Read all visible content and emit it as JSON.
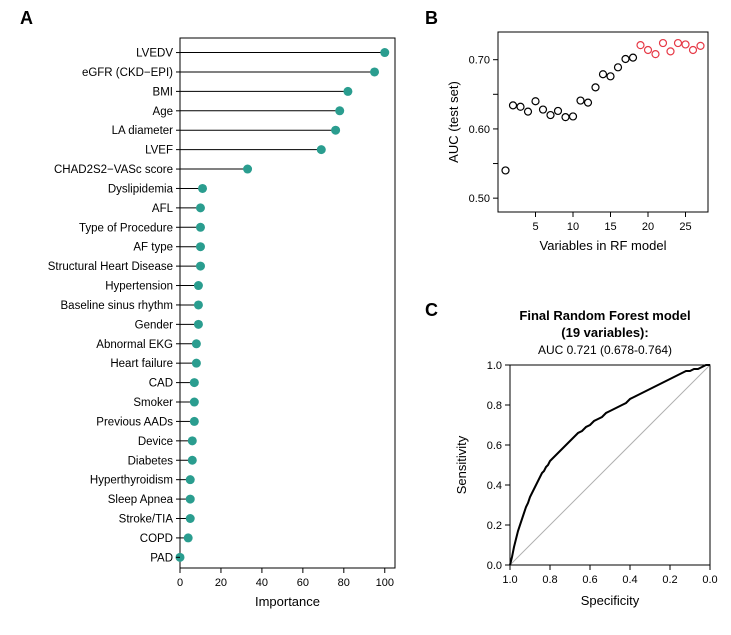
{
  "panelA": {
    "label": "A",
    "type": "lollipop",
    "xlabel": "Importance",
    "xlabel_fontsize": 13,
    "label_fontsize": 11.5,
    "xlim": [
      0,
      105
    ],
    "xticks": [
      0,
      20,
      40,
      60,
      80,
      100
    ],
    "tick_fontsize": 11,
    "dot_color": "#2a9d8f",
    "dot_radius": 4.5,
    "line_color": "#000000",
    "border_color": "#000000",
    "background_color": "#ffffff",
    "items": [
      {
        "label": "LVEDV",
        "value": 100
      },
      {
        "label": "eGFR (CKD−EPI)",
        "value": 95
      },
      {
        "label": "BMI",
        "value": 82
      },
      {
        "label": "Age",
        "value": 78
      },
      {
        "label": "LA diameter",
        "value": 76
      },
      {
        "label": "LVEF",
        "value": 69
      },
      {
        "label": "CHAD2S2−VASc score",
        "value": 33
      },
      {
        "label": "Dyslipidemia",
        "value": 11
      },
      {
        "label": "AFL",
        "value": 10
      },
      {
        "label": "Type of Procedure",
        "value": 10
      },
      {
        "label": "AF type",
        "value": 10
      },
      {
        "label": "Structural Heart Disease",
        "value": 10
      },
      {
        "label": "Hypertension",
        "value": 9
      },
      {
        "label": "Baseline sinus rhythm",
        "value": 9
      },
      {
        "label": "Gender",
        "value": 9
      },
      {
        "label": "Abnormal EKG",
        "value": 8
      },
      {
        "label": "Heart failure",
        "value": 8
      },
      {
        "label": "CAD",
        "value": 7
      },
      {
        "label": "Smoker",
        "value": 7
      },
      {
        "label": "Previous AADs",
        "value": 7
      },
      {
        "label": "Device",
        "value": 6
      },
      {
        "label": "Diabetes",
        "value": 6
      },
      {
        "label": "Hyperthyroidism",
        "value": 5
      },
      {
        "label": "Sleep Apnea",
        "value": 5
      },
      {
        "label": "Stroke/TIA",
        "value": 5
      },
      {
        "label": "COPD",
        "value": 4
      },
      {
        "label": "PAD",
        "value": 0
      }
    ]
  },
  "panelB": {
    "label": "B",
    "type": "scatter",
    "xlabel": "Variables in RF model",
    "ylabel": "AUC (test set)",
    "xlabel_fontsize": 13,
    "ylabel_fontsize": 13,
    "xlim": [
      0,
      28
    ],
    "ylim": [
      0.48,
      0.74
    ],
    "xticks": [
      5,
      10,
      15,
      20,
      25
    ],
    "yticks": [
      0.5,
      0.55,
      0.6,
      0.65,
      0.7
    ],
    "yticklabels": [
      "0.50",
      "",
      "0.60",
      "",
      "0.70"
    ],
    "tick_fontsize": 11,
    "border_color": "#000000",
    "marker_radius": 3.5,
    "marker_stroke_black": "#000000",
    "marker_stroke_red": "#e63946",
    "points": [
      {
        "x": 1,
        "y": 0.54,
        "c": "black"
      },
      {
        "x": 2,
        "y": 0.634,
        "c": "black"
      },
      {
        "x": 3,
        "y": 0.632,
        "c": "black"
      },
      {
        "x": 4,
        "y": 0.625,
        "c": "black"
      },
      {
        "x": 5,
        "y": 0.64,
        "c": "black"
      },
      {
        "x": 6,
        "y": 0.628,
        "c": "black"
      },
      {
        "x": 7,
        "y": 0.62,
        "c": "black"
      },
      {
        "x": 8,
        "y": 0.626,
        "c": "black"
      },
      {
        "x": 9,
        "y": 0.617,
        "c": "black"
      },
      {
        "x": 10,
        "y": 0.618,
        "c": "black"
      },
      {
        "x": 11,
        "y": 0.641,
        "c": "black"
      },
      {
        "x": 12,
        "y": 0.638,
        "c": "black"
      },
      {
        "x": 13,
        "y": 0.66,
        "c": "black"
      },
      {
        "x": 14,
        "y": 0.679,
        "c": "black"
      },
      {
        "x": 15,
        "y": 0.676,
        "c": "black"
      },
      {
        "x": 16,
        "y": 0.689,
        "c": "black"
      },
      {
        "x": 17,
        "y": 0.701,
        "c": "black"
      },
      {
        "x": 18,
        "y": 0.703,
        "c": "black"
      },
      {
        "x": 19,
        "y": 0.721,
        "c": "red"
      },
      {
        "x": 20,
        "y": 0.714,
        "c": "red"
      },
      {
        "x": 21,
        "y": 0.708,
        "c": "red"
      },
      {
        "x": 22,
        "y": 0.724,
        "c": "red"
      },
      {
        "x": 23,
        "y": 0.712,
        "c": "red"
      },
      {
        "x": 24,
        "y": 0.724,
        "c": "red"
      },
      {
        "x": 25,
        "y": 0.722,
        "c": "red"
      },
      {
        "x": 26,
        "y": 0.714,
        "c": "red"
      },
      {
        "x": 27,
        "y": 0.72,
        "c": "red"
      }
    ]
  },
  "panelC": {
    "label": "C",
    "type": "roc",
    "title_line1": "Final Random Forest model",
    "title_line2": "(19 variables):",
    "subtitle": "AUC 0.721 (0.678-0.764)",
    "title_fontsize": 13,
    "subtitle_fontsize": 12,
    "xlabel": "Specificity",
    "ylabel": "Sensitivity",
    "label_fontsize": 13,
    "xlim": [
      1.0,
      0.0
    ],
    "ylim": [
      0.0,
      1.0
    ],
    "xticks": [
      1.0,
      0.8,
      0.6,
      0.4,
      0.2,
      0.0
    ],
    "yticks": [
      0.0,
      0.2,
      0.4,
      0.6,
      0.8,
      1.0
    ],
    "tick_fontsize": 11,
    "border_color": "#000000",
    "roc_color": "#000000",
    "roc_width": 2,
    "diag_color": "#b0b0b0",
    "diag_width": 1,
    "roc_points": [
      [
        1.0,
        0.0
      ],
      [
        0.99,
        0.04
      ],
      [
        0.98,
        0.09
      ],
      [
        0.97,
        0.13
      ],
      [
        0.96,
        0.17
      ],
      [
        0.95,
        0.2
      ],
      [
        0.94,
        0.23
      ],
      [
        0.93,
        0.26
      ],
      [
        0.92,
        0.29
      ],
      [
        0.91,
        0.31
      ],
      [
        0.9,
        0.34
      ],
      [
        0.89,
        0.36
      ],
      [
        0.88,
        0.38
      ],
      [
        0.87,
        0.4
      ],
      [
        0.86,
        0.42
      ],
      [
        0.85,
        0.44
      ],
      [
        0.84,
        0.46
      ],
      [
        0.83,
        0.47
      ],
      [
        0.82,
        0.49
      ],
      [
        0.81,
        0.5
      ],
      [
        0.8,
        0.52
      ],
      [
        0.78,
        0.54
      ],
      [
        0.76,
        0.56
      ],
      [
        0.74,
        0.58
      ],
      [
        0.72,
        0.6
      ],
      [
        0.7,
        0.62
      ],
      [
        0.68,
        0.64
      ],
      [
        0.66,
        0.66
      ],
      [
        0.64,
        0.67
      ],
      [
        0.62,
        0.69
      ],
      [
        0.6,
        0.7
      ],
      [
        0.58,
        0.72
      ],
      [
        0.56,
        0.73
      ],
      [
        0.54,
        0.74
      ],
      [
        0.52,
        0.76
      ],
      [
        0.5,
        0.77
      ],
      [
        0.48,
        0.78
      ],
      [
        0.46,
        0.79
      ],
      [
        0.44,
        0.8
      ],
      [
        0.42,
        0.81
      ],
      [
        0.4,
        0.83
      ],
      [
        0.38,
        0.84
      ],
      [
        0.36,
        0.85
      ],
      [
        0.34,
        0.86
      ],
      [
        0.32,
        0.87
      ],
      [
        0.3,
        0.88
      ],
      [
        0.28,
        0.89
      ],
      [
        0.26,
        0.9
      ],
      [
        0.24,
        0.91
      ],
      [
        0.22,
        0.92
      ],
      [
        0.2,
        0.93
      ],
      [
        0.18,
        0.94
      ],
      [
        0.16,
        0.95
      ],
      [
        0.14,
        0.96
      ],
      [
        0.12,
        0.97
      ],
      [
        0.1,
        0.97
      ],
      [
        0.08,
        0.98
      ],
      [
        0.06,
        0.98
      ],
      [
        0.04,
        0.99
      ],
      [
        0.02,
        1.0
      ],
      [
        0.0,
        1.0
      ]
    ]
  }
}
